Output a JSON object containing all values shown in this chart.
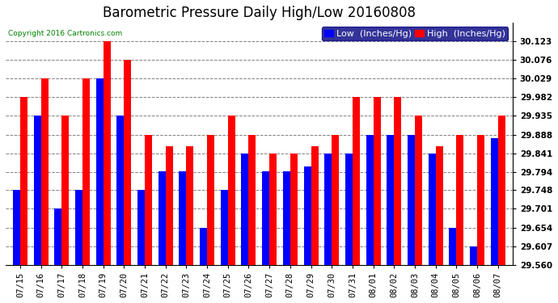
{
  "title": "Barometric Pressure Daily High/Low 20160808",
  "copyright": "Copyright 2016 Cartronics.com",
  "legend_low": "Low  (Inches/Hg)",
  "legend_high": "High  (Inches/Hg)",
  "dates": [
    "07/15",
    "07/16",
    "07/17",
    "07/18",
    "07/19",
    "07/20",
    "07/21",
    "07/22",
    "07/23",
    "07/24",
    "07/25",
    "07/26",
    "07/27",
    "07/28",
    "07/29",
    "07/30",
    "07/31",
    "08/01",
    "08/02",
    "08/03",
    "08/04",
    "08/05",
    "08/06",
    "08/07"
  ],
  "low_values": [
    29.748,
    29.935,
    29.701,
    29.748,
    30.029,
    29.935,
    29.748,
    29.795,
    29.795,
    29.654,
    29.748,
    29.841,
    29.795,
    29.795,
    29.808,
    29.841,
    29.841,
    29.888,
    29.888,
    29.888,
    29.841,
    29.654,
    29.607,
    29.878
  ],
  "high_values": [
    29.982,
    30.029,
    29.935,
    30.029,
    30.123,
    30.076,
    29.888,
    29.858,
    29.858,
    29.888,
    29.935,
    29.888,
    29.841,
    29.841,
    29.858,
    29.888,
    29.982,
    29.982,
    29.982,
    29.935,
    29.858,
    29.888,
    29.888,
    29.935
  ],
  "ylim_min": 29.56,
  "ylim_max": 30.17,
  "yticks": [
    29.56,
    29.607,
    29.654,
    29.701,
    29.748,
    29.794,
    29.841,
    29.888,
    29.935,
    29.982,
    30.029,
    30.076,
    30.123
  ],
  "bar_width": 0.35,
  "low_color": "#0000ff",
  "high_color": "#ff0000",
  "bg_color": "#ffffff",
  "grid_color": "#808080",
  "title_fontsize": 12,
  "tick_fontsize": 7.5,
  "legend_fontsize": 8
}
